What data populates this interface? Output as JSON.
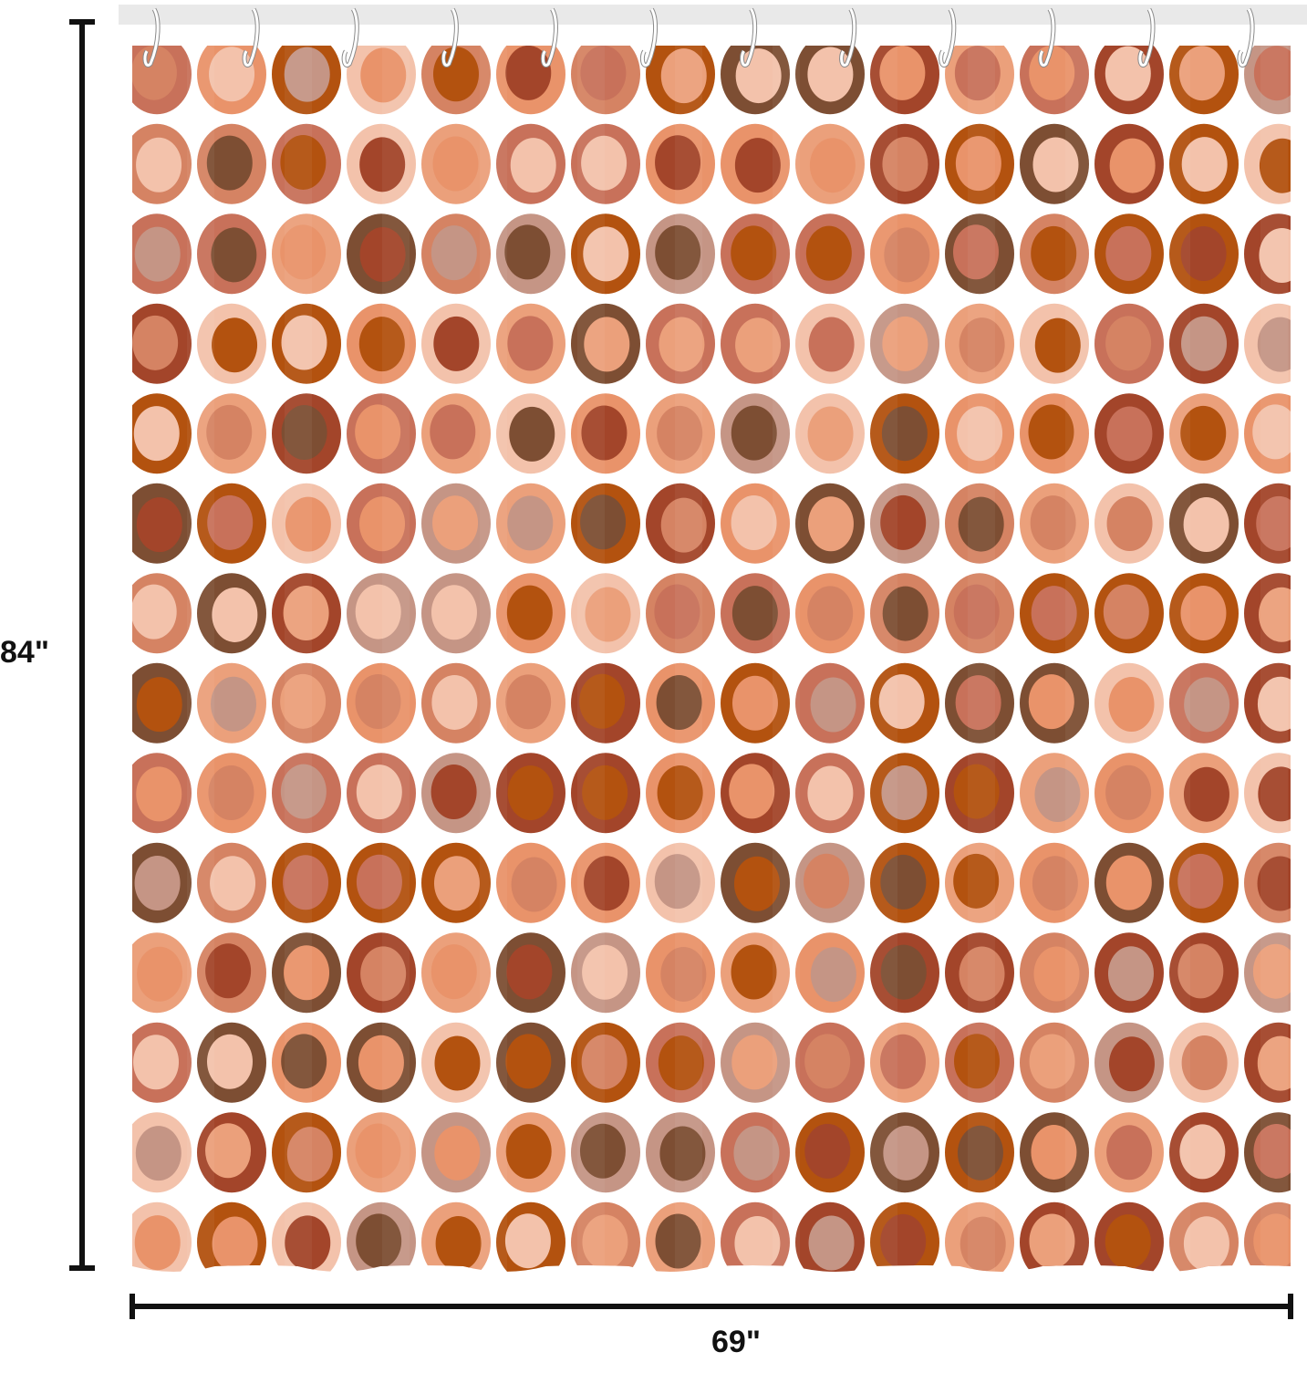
{
  "product": {
    "height_label": "84\"",
    "width_label": "69\""
  },
  "curtain": {
    "hooks": 12,
    "pattern_rows": 14,
    "pattern_cols": 15,
    "colors": {
      "background": "#ffffff",
      "rod": "#e9e9e9",
      "hook": "#ffffff",
      "dimension_line": "#111111",
      "palette": [
        "#b3520f",
        "#7d4e33",
        "#e9936a",
        "#f3c2ab",
        "#c8715a",
        "#d58363",
        "#a3452a",
        "#c59585",
        "#eba07b"
      ]
    }
  }
}
